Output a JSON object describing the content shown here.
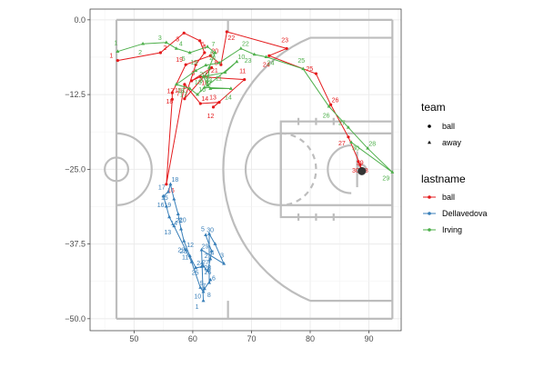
{
  "chart_data": {
    "type": "scatter",
    "title": "",
    "xlabel": "",
    "ylabel": "",
    "xlim": [
      42.5,
      95.5
    ],
    "ylim": [
      -52,
      1.8
    ],
    "x_ticks": [
      50,
      60,
      70,
      80,
      90
    ],
    "y_ticks": [
      0.0,
      -12.5,
      -25.0,
      -37.5,
      -50.0
    ],
    "x_tick_labels": [
      "50",
      "60",
      "70",
      "80",
      "90"
    ],
    "y_tick_labels": [
      "0.0",
      "−12.5",
      "−25.0",
      "−37.5",
      "−50.0"
    ],
    "grid": true,
    "legend_position": "right",
    "court_overlay": true,
    "legend": {
      "shape": {
        "title": "team",
        "items": [
          {
            "label": "ball",
            "shape": "circle"
          },
          {
            "label": "away",
            "shape": "triangle"
          }
        ]
      },
      "color": {
        "title": "lastname",
        "items": [
          {
            "label": "ball",
            "color": "#e41a1c"
          },
          {
            "label": "Dellavedova",
            "color": "#377eb8"
          },
          {
            "label": "Irving",
            "color": "#4daf4a"
          }
        ]
      }
    },
    "series": [
      {
        "name": "ball",
        "color": "#e41a1c",
        "shape": "circle",
        "points": [
          {
            "label": "1",
            "x": 47.2,
            "y": -6.8
          },
          {
            "label": "2",
            "x": 54.5,
            "y": -5.5
          },
          {
            "label": "3",
            "x": 58.5,
            "y": -2.2
          },
          {
            "label": "4",
            "x": 61.2,
            "y": -3.5
          },
          {
            "label": "5",
            "x": 62.0,
            "y": -5.5
          },
          {
            "label": "6",
            "x": 60.5,
            "y": -7.5
          },
          {
            "label": "7",
            "x": 58.6,
            "y": -13.2
          },
          {
            "label": "8",
            "x": 63.2,
            "y": -8.0
          },
          {
            "label": "9",
            "x": 59.8,
            "y": -10.2
          },
          {
            "label": "10",
            "x": 61.3,
            "y": -9.5
          },
          {
            "label": "11",
            "x": 68.8,
            "y": -10.0
          },
          {
            "label": "12",
            "x": 63.5,
            "y": -14.6
          },
          {
            "label": "13",
            "x": 64.5,
            "y": -13.8
          },
          {
            "label": "14",
            "x": 61.3,
            "y": -14.0
          },
          {
            "label": "15",
            "x": 58.6,
            "y": -10.8
          },
          {
            "label": "16",
            "x": 55.5,
            "y": -27.5
          },
          {
            "label": "17",
            "x": 56.5,
            "y": -13.3
          },
          {
            "label": "18",
            "x": 56.5,
            "y": -12.2
          },
          {
            "label": "19",
            "x": 58.8,
            "y": -7.5
          },
          {
            "label": "20",
            "x": 63.0,
            "y": -6.0
          },
          {
            "label": "21",
            "x": 64.8,
            "y": -7.5
          },
          {
            "label": "22",
            "x": 65.8,
            "y": -2.0
          },
          {
            "label": "23",
            "x": 76.0,
            "y": -4.8
          },
          {
            "label": "24",
            "x": 73.0,
            "y": -6.0
          },
          {
            "label": "25",
            "x": 81.0,
            "y": -9.0
          },
          {
            "label": "26",
            "x": 83.5,
            "y": -14.2
          },
          {
            "label": "27",
            "x": 86.5,
            "y": -19.6
          },
          {
            "label": "28",
            "x": 88.5,
            "y": -24.2
          },
          {
            "label": "29",
            "x": 88.8,
            "y": -25.3
          },
          {
            "label": "30",
            "x": 88.2,
            "y": -23.7
          }
        ]
      },
      {
        "name": "Dellavedova",
        "color": "#377eb8",
        "shape": "triangle",
        "points": [
          {
            "label": "1",
            "x": 61.8,
            "y": -47.0
          },
          {
            "label": "2",
            "x": 61.5,
            "y": -38.5
          },
          {
            "label": "3",
            "x": 65.3,
            "y": -40.8
          },
          {
            "label": "4",
            "x": 63.8,
            "y": -37.5
          },
          {
            "label": "5",
            "x": 62.8,
            "y": -35.8
          },
          {
            "label": "6",
            "x": 62.8,
            "y": -44.0
          },
          {
            "label": "7",
            "x": 63.0,
            "y": -43.5
          },
          {
            "label": "8",
            "x": 62.0,
            "y": -45.0
          },
          {
            "label": "9",
            "x": 61.8,
            "y": -45.5
          },
          {
            "label": "10",
            "x": 61.3,
            "y": -44.8
          },
          {
            "label": "11",
            "x": 59.8,
            "y": -40.5
          },
          {
            "label": "12",
            "x": 58.8,
            "y": -38.5
          },
          {
            "label": "13",
            "x": 56.8,
            "y": -34.5
          },
          {
            "label": "14",
            "x": 56.0,
            "y": -33.0
          },
          {
            "label": "15",
            "x": 55.5,
            "y": -31.2
          },
          {
            "label": "16",
            "x": 55.0,
            "y": -29.5
          },
          {
            "label": "17",
            "x": 55.8,
            "y": -28.8
          },
          {
            "label": "18",
            "x": 56.2,
            "y": -27.5
          },
          {
            "label": "19",
            "x": 56.8,
            "y": -30.0
          },
          {
            "label": "20",
            "x": 57.5,
            "y": -32.5
          },
          {
            "label": "21",
            "x": 58.0,
            "y": -35.0
          },
          {
            "label": "22",
            "x": 58.5,
            "y": -37.0
          },
          {
            "label": "23",
            "x": 59.5,
            "y": -39.5
          },
          {
            "label": "24",
            "x": 60.5,
            "y": -41.5
          },
          {
            "label": "25",
            "x": 61.5,
            "y": -41.3
          },
          {
            "label": "26",
            "x": 61.8,
            "y": -41.2
          },
          {
            "label": "27",
            "x": 62.5,
            "y": -42.0
          },
          {
            "label": "28",
            "x": 63.0,
            "y": -40.0
          },
          {
            "label": "29",
            "x": 63.2,
            "y": -38.7
          },
          {
            "label": "30",
            "x": 62.2,
            "y": -36.0
          }
        ]
      },
      {
        "name": "Irving",
        "color": "#4daf4a",
        "shape": "triangle",
        "points": [
          {
            "label": "1",
            "x": 47.2,
            "y": -5.3
          },
          {
            "label": "2",
            "x": 51.5,
            "y": -4.0
          },
          {
            "label": "3",
            "x": 55.5,
            "y": -3.8
          },
          {
            "label": "4",
            "x": 57.2,
            "y": -4.8
          },
          {
            "label": "5",
            "x": 59.5,
            "y": -5.5
          },
          {
            "label": "6",
            "x": 62.5,
            "y": -4.5
          },
          {
            "label": "7",
            "x": 63.8,
            "y": -5.5
          },
          {
            "label": "8",
            "x": 62.8,
            "y": -8.0
          },
          {
            "label": "9",
            "x": 62.5,
            "y": -11.0
          },
          {
            "label": "10",
            "x": 67.5,
            "y": -7.0
          },
          {
            "label": "11",
            "x": 65.5,
            "y": -8.8
          },
          {
            "label": "12",
            "x": 61.8,
            "y": -9.5
          },
          {
            "label": "13",
            "x": 63.0,
            "y": -11.5
          },
          {
            "label": "14",
            "x": 66.5,
            "y": -11.5
          },
          {
            "label": "15",
            "x": 62.0,
            "y": -11.3
          },
          {
            "label": "16",
            "x": 60.8,
            "y": -12.5
          },
          {
            "label": "17",
            "x": 59.5,
            "y": -11.5
          },
          {
            "label": "18",
            "x": 57.2,
            "y": -10.8
          },
          {
            "label": "19",
            "x": 60.5,
            "y": -8.5
          },
          {
            "label": "20",
            "x": 62.2,
            "y": -7.6
          },
          {
            "label": "21",
            "x": 64.5,
            "y": -7.2
          },
          {
            "label": "22",
            "x": 68.2,
            "y": -4.8
          },
          {
            "label": "23",
            "x": 70.5,
            "y": -5.8
          },
          {
            "label": "24",
            "x": 72.5,
            "y": -6.2
          },
          {
            "label": "25",
            "x": 78.8,
            "y": -8.2
          },
          {
            "label": "26",
            "x": 83.2,
            "y": -14.5
          },
          {
            "label": "27",
            "x": 86.5,
            "y": -18.0
          },
          {
            "label": "28",
            "x": 89.8,
            "y": -21.5
          },
          {
            "label": "29",
            "x": 94.0,
            "y": -25.5
          },
          {
            "label": "30",
            "x": 87.0,
            "y": -20.5
          }
        ]
      }
    ]
  }
}
